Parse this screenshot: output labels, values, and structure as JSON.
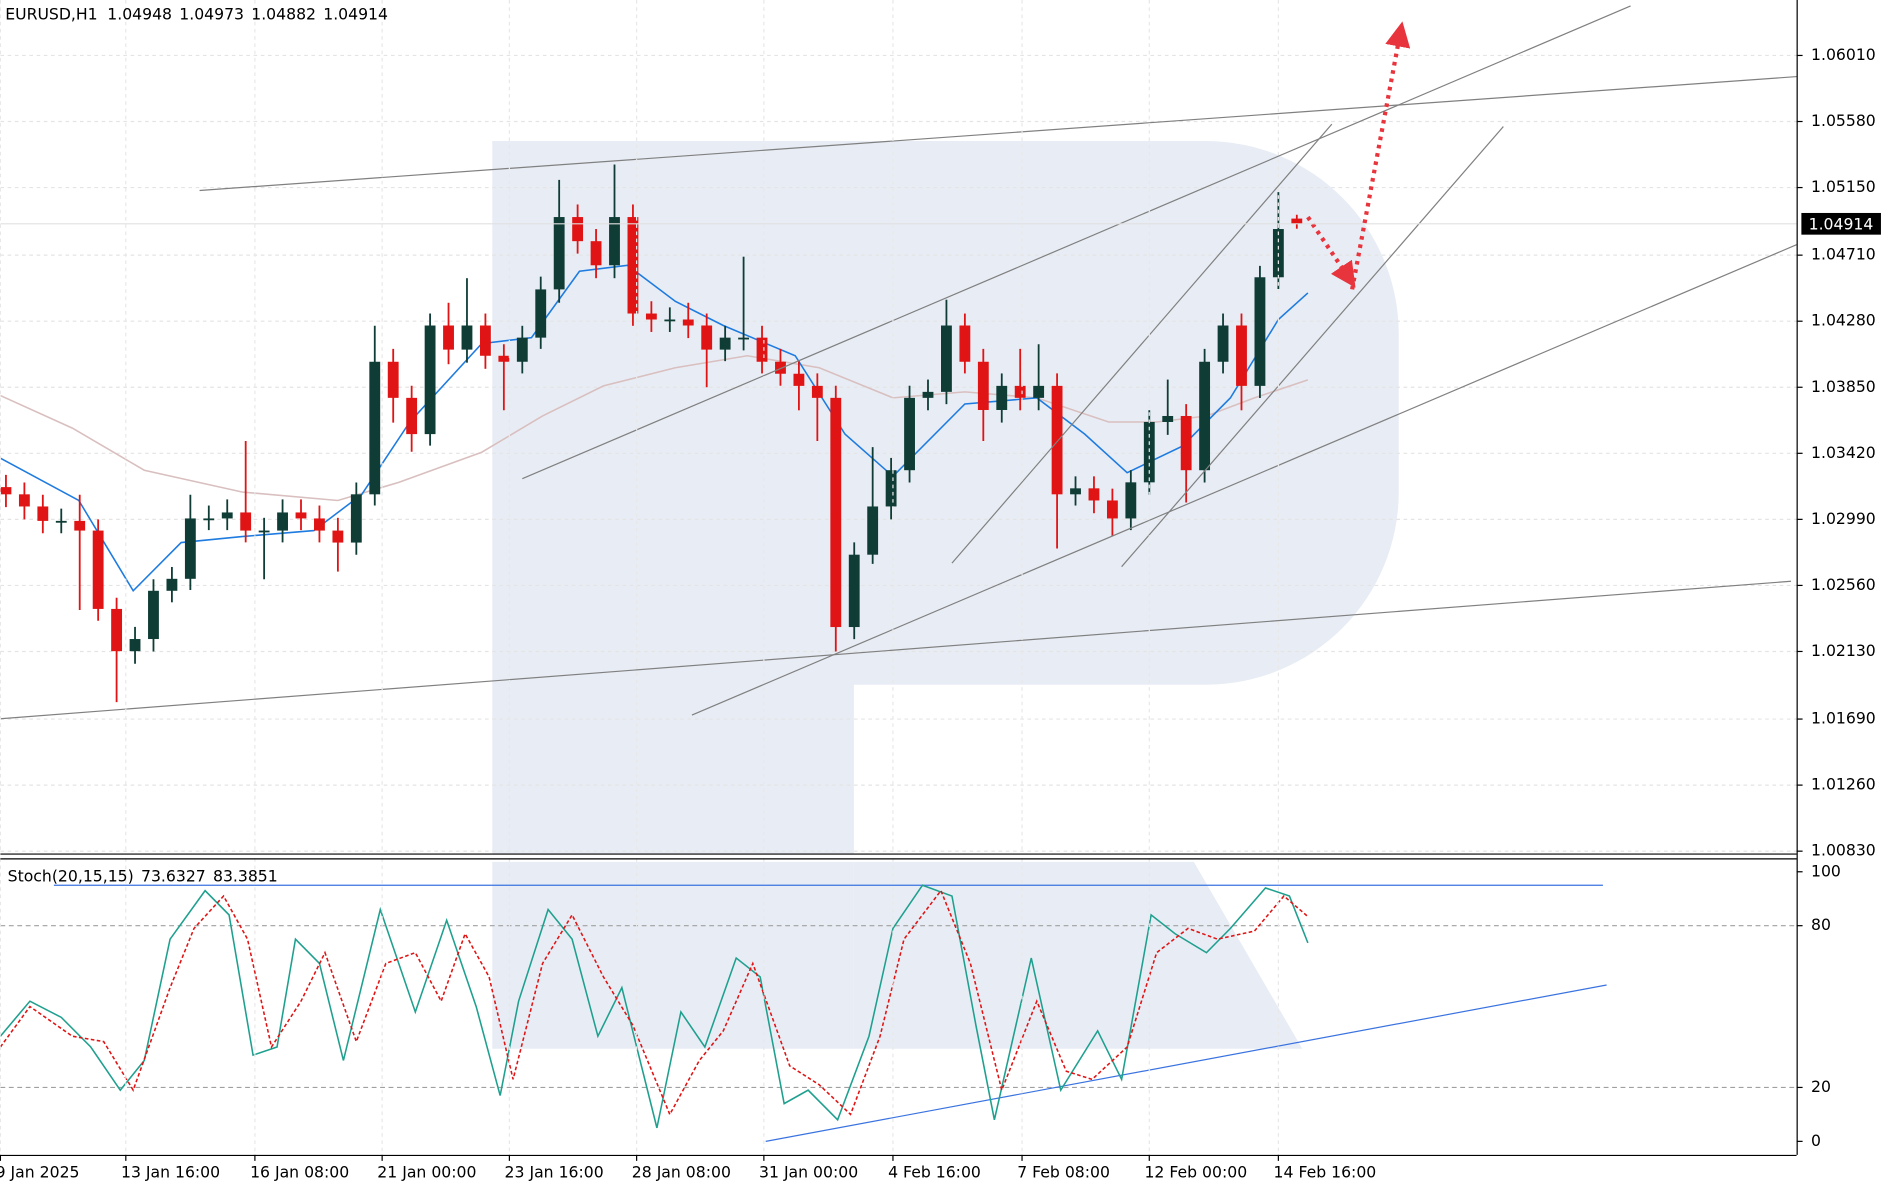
{
  "chart_data": [
    {
      "type": "candlestick",
      "title": "EURUSD,H1",
      "xlim": [
        -0.3,
        97.1
      ],
      "ylim": [
        1.00815,
        1.06371
      ],
      "yticks": [
        {
          "value": 1.0601,
          "label": "1.06010"
        },
        {
          "value": 1.0558,
          "label": "1.05580"
        },
        {
          "value": 1.0515,
          "label": "1.05150"
        },
        {
          "value": 1.0471,
          "label": "1.04710"
        },
        {
          "value": 1.0428,
          "label": "1.04280"
        },
        {
          "value": 1.0385,
          "label": "1.03850"
        },
        {
          "value": 1.0342,
          "label": "1.03420"
        },
        {
          "value": 1.0299,
          "label": "1.02990"
        },
        {
          "value": 1.0256,
          "label": "1.02560"
        },
        {
          "value": 1.0213,
          "label": "1.02130"
        },
        {
          "value": 1.0169,
          "label": "1.01690"
        },
        {
          "value": 1.0126,
          "label": "1.01260"
        },
        {
          "value": 1.0083,
          "label": "1.00830"
        }
      ],
      "grid": true,
      "up_color": "#0f3d36",
      "down_color": "#e01414",
      "open": [
        1.032,
        1.03153,
        1.03074,
        1.0298,
        1.0298,
        1.02917,
        1.02407,
        1.02132,
        1.02211,
        1.02525,
        1.02603,
        1.02996,
        1.02996,
        1.03035,
        1.02917,
        1.02917,
        1.03035,
        1.02996,
        1.02917,
        1.02839,
        1.03153,
        1.04016,
        1.03781,
        1.03545,
        1.04252,
        1.04095,
        1.04252,
        1.04055,
        1.04016,
        1.04173,
        1.04487,
        1.04958,
        1.04801,
        1.04644,
        1.04958,
        1.0433,
        1.04291,
        1.04291,
        1.04252,
        1.04095,
        1.04173,
        1.04173,
        1.04016,
        1.03938,
        1.03859,
        1.03781,
        1.02289,
        1.0276,
        1.03074,
        1.0331,
        1.03781,
        1.0382,
        1.04252,
        1.04016,
        1.03702,
        1.03859,
        1.03781,
        1.03859,
        1.03153,
        1.03192,
        1.03113,
        1.02996,
        1.03231,
        1.03624,
        1.03663,
        1.0331,
        1.04016,
        1.04252,
        1.03859,
        1.04566,
        1.04948
      ],
      "high": [
        1.0328,
        1.0323,
        1.0315,
        1.0306,
        1.0315,
        1.0299,
        1.0248,
        1.0229,
        1.026,
        1.0268,
        1.0315,
        1.0308,
        1.0312,
        1.035,
        1.03,
        1.0312,
        1.0312,
        1.0308,
        1.03,
        1.0323,
        1.0425,
        1.041,
        1.0386,
        1.0433,
        1.044,
        1.0456,
        1.0433,
        1.0413,
        1.0425,
        1.0457,
        1.052,
        1.0504,
        1.0488,
        1.053,
        1.0504,
        1.0441,
        1.0437,
        1.044,
        1.0433,
        1.0425,
        1.047,
        1.0425,
        1.041,
        1.0402,
        1.0394,
        1.0386,
        1.0284,
        1.0346,
        1.0339,
        1.0386,
        1.039,
        1.0442,
        1.0433,
        1.041,
        1.0394,
        1.041,
        1.0413,
        1.0394,
        1.0327,
        1.0327,
        1.0319,
        1.0331,
        1.037,
        1.039,
        1.0374,
        1.041,
        1.0433,
        1.0433,
        1.0464,
        1.0512,
        1.04973
      ],
      "low": [
        1.0307,
        1.0299,
        1.029,
        1.029,
        1.024,
        1.0233,
        1.018,
        1.0205,
        1.0213,
        1.0245,
        1.0253,
        1.0292,
        1.0292,
        1.0284,
        1.026,
        1.0284,
        1.0292,
        1.0284,
        1.0265,
        1.0276,
        1.0308,
        1.0362,
        1.0343,
        1.0347,
        1.04,
        1.0401,
        1.0397,
        1.037,
        1.0394,
        1.041,
        1.044,
        1.0472,
        1.0456,
        1.0456,
        1.0425,
        1.0421,
        1.0421,
        1.0417,
        1.0385,
        1.0402,
        1.0409,
        1.0394,
        1.0386,
        1.037,
        1.035,
        1.0213,
        1.0221,
        1.027,
        1.0299,
        1.0323,
        1.037,
        1.0374,
        1.0394,
        1.035,
        1.0362,
        1.037,
        1.037,
        1.028,
        1.0308,
        1.0303,
        1.0288,
        1.0292,
        1.0315,
        1.0354,
        1.031,
        1.0323,
        1.0394,
        1.037,
        1.0378,
        1.0449,
        1.04882
      ],
      "close": [
        1.03153,
        1.03074,
        1.0298,
        1.0298,
        1.02917,
        1.02407,
        1.02132,
        1.02211,
        1.02525,
        1.02603,
        1.02996,
        1.02996,
        1.03035,
        1.02917,
        1.02917,
        1.03035,
        1.02996,
        1.02917,
        1.02839,
        1.03153,
        1.04016,
        1.03781,
        1.03545,
        1.04252,
        1.04095,
        1.04252,
        1.04055,
        1.04016,
        1.04173,
        1.04487,
        1.04958,
        1.04801,
        1.04644,
        1.04958,
        1.0433,
        1.04291,
        1.04291,
        1.04252,
        1.04095,
        1.04173,
        1.04173,
        1.04016,
        1.03938,
        1.03859,
        1.03781,
        1.02289,
        1.0276,
        1.03074,
        1.0331,
        1.03781,
        1.0382,
        1.04252,
        1.04016,
        1.03702,
        1.03859,
        1.03781,
        1.03859,
        1.03153,
        1.03192,
        1.03113,
        1.02996,
        1.03231,
        1.03624,
        1.03663,
        1.0331,
        1.04016,
        1.04252,
        1.03859,
        1.04566,
        1.0488,
        1.04914
      ],
      "series": [
        {
          "color": "#d9bfbf",
          "x": [
            -0.3,
            3.6,
            7.5,
            12.8,
            18.0,
            21.3,
            25.8,
            29.1,
            32.4,
            36.3,
            40.2,
            44.1,
            48.1,
            52.0,
            55.9,
            59.8,
            62.4,
            65.1,
            67.7,
            70.6
          ],
          "values": [
            1.03796,
            1.03584,
            1.0331,
            1.03168,
            1.03113,
            1.03231,
            1.03427,
            1.03663,
            1.03859,
            1.03977,
            1.04055,
            1.03977,
            1.03781,
            1.0382,
            1.03781,
            1.03624,
            1.03624,
            1.03663,
            1.03781,
            1.03898
          ]
        },
        {
          "color": "#1e7be0",
          "x": [
            -0.3,
            3.95,
            6.9,
            9.5,
            12.8,
            16.7,
            19.3,
            21.9,
            25.8,
            28.5,
            31.1,
            33.7,
            36.3,
            38.9,
            42.8,
            45.5,
            48.1,
            52.0,
            55.9,
            58.5,
            60.8,
            63.8,
            66.4,
            69.0,
            70.6
          ],
          "values": [
            1.03388,
            1.03113,
            1.02525,
            1.02839,
            1.02878,
            1.02917,
            1.03153,
            1.03624,
            1.04134,
            1.04173,
            1.04605,
            1.04644,
            1.04409,
            1.04252,
            1.04055,
            1.03545,
            1.0327,
            1.03741,
            1.03781,
            1.03545,
            1.03294,
            1.03467,
            1.03781,
            1.04291,
            1.04464
          ]
        }
      ],
      "trendlines": [
        {
          "x": [
            10.5,
            102.2
          ],
          "y": [
            1.05131,
            1.05916
          ]
        },
        {
          "x": [
            -0.3,
            96.8
          ],
          "y": [
            1.01692,
            1.02587
          ]
        },
        {
          "x": [
            28.0,
            88.1
          ],
          "y": [
            1.03255,
            1.06332
          ]
        },
        {
          "x": [
            37.2,
            97.1
          ],
          "y": [
            1.01716,
            1.04778
          ]
        },
        {
          "x": [
            51.3,
            71.9
          ],
          "y": [
            1.02705,
            1.05563
          ]
        },
        {
          "x": [
            60.5,
            81.2
          ],
          "y": [
            1.02682,
            1.05547
          ]
        }
      ],
      "trendline_color": "#808080",
      "arrows": [
        {
          "x": [
            70.6,
            72.8
          ],
          "y": [
            1.04958,
            1.04566
          ]
        },
        {
          "x": [
            73.0,
            75.6
          ],
          "y": [
            1.04487,
            1.06151
          ]
        }
      ],
      "arrow_color": "#e8343c"
    },
    {
      "type": "line",
      "title": "Stoch(20,15,15)",
      "xlim": [
        -0.3,
        97.1
      ],
      "ylim": [
        -5,
        105
      ],
      "yticks": [
        0,
        20,
        80,
        100
      ],
      "levels": [
        20,
        80
      ],
      "xticks": [
        {
          "value": -0.3,
          "label": "9 Jan 2025"
        },
        {
          "value": 6.5,
          "label": "13 Jan 16:00"
        },
        {
          "value": 13.5,
          "label": "16 Jan 08:00"
        },
        {
          "value": 20.4,
          "label": "21 Jan 00:00"
        },
        {
          "value": 27.3,
          "label": "23 Jan 16:00"
        },
        {
          "value": 34.2,
          "label": "28 Jan 08:00"
        },
        {
          "value": 41.1,
          "label": "31 Jan 00:00"
        },
        {
          "value": 48.1,
          "label": "4 Feb 16:00"
        },
        {
          "value": 55.1,
          "label": "7 Feb 08:00"
        },
        {
          "value": 62.0,
          "label": "12 Feb 00:00"
        },
        {
          "value": 69.0,
          "label": "14 Feb 16:00"
        }
      ],
      "series": [
        {
          "color": "#1fa08f",
          "line_style": "solid",
          "x": [
            -0.3,
            1.3,
            3.0,
            4.6,
            6.2,
            7.5,
            8.9,
            10.8,
            12.1,
            13.4,
            14.7,
            15.7,
            17.0,
            18.3,
            20.3,
            22.2,
            23.9,
            25.5,
            26.8,
            27.8,
            29.4,
            30.7,
            32.1,
            33.4,
            35.3,
            36.6,
            37.9,
            39.6,
            40.9,
            42.2,
            43.5,
            45.1,
            46.8,
            48.1,
            49.7,
            51.3,
            52.6,
            53.6,
            55.6,
            57.2,
            59.2,
            60.5,
            62.1,
            63.4,
            65.1,
            66.4,
            68.3,
            69.6,
            70.6
          ],
          "values": [
            39,
            52,
            46,
            35,
            19,
            30,
            75,
            93,
            84,
            32,
            35,
            75,
            66,
            30,
            86,
            48,
            82,
            50,
            17,
            52,
            86,
            75,
            39,
            57,
            5,
            48,
            35,
            68,
            61,
            14,
            19,
            8,
            39,
            79,
            95,
            91,
            43,
            8,
            68,
            19,
            41,
            23,
            84,
            77,
            70,
            79,
            94,
            91,
            73.6327
          ]
        },
        {
          "color": "#e01414",
          "line_style": "dotted",
          "x": [
            -0.3,
            1.3,
            3.6,
            5.3,
            6.9,
            8.9,
            10.2,
            11.8,
            13.1,
            14.4,
            16.0,
            17.3,
            19.0,
            20.6,
            22.2,
            23.6,
            24.9,
            26.2,
            27.5,
            29.1,
            30.7,
            32.4,
            34.0,
            36.0,
            37.6,
            38.9,
            40.5,
            42.5,
            44.1,
            45.8,
            47.4,
            48.7,
            50.7,
            52.3,
            54.0,
            55.9,
            57.5,
            58.9,
            60.8,
            62.4,
            64.1,
            65.7,
            67.7,
            69.3,
            70.6
          ],
          "values": [
            35,
            50,
            39,
            37,
            19,
            57,
            79,
            91,
            75,
            35,
            52,
            70,
            37,
            66,
            70,
            52,
            77,
            61,
            23,
            66,
            84,
            61,
            43,
            10,
            30,
            41,
            66,
            28,
            21,
            10,
            39,
            75,
            93,
            66,
            19,
            52,
            26,
            23,
            35,
            70,
            79,
            75,
            78,
            91,
            83.3851
          ]
        }
      ],
      "trendlines": [
        {
          "x": [
            2.6,
            86.6
          ],
          "y": [
            95,
            95
          ]
        },
        {
          "x": [
            41.2,
            86.8
          ],
          "y": [
            0,
            58
          ]
        }
      ],
      "trendline_color": "#3a73e0"
    }
  ]
}
